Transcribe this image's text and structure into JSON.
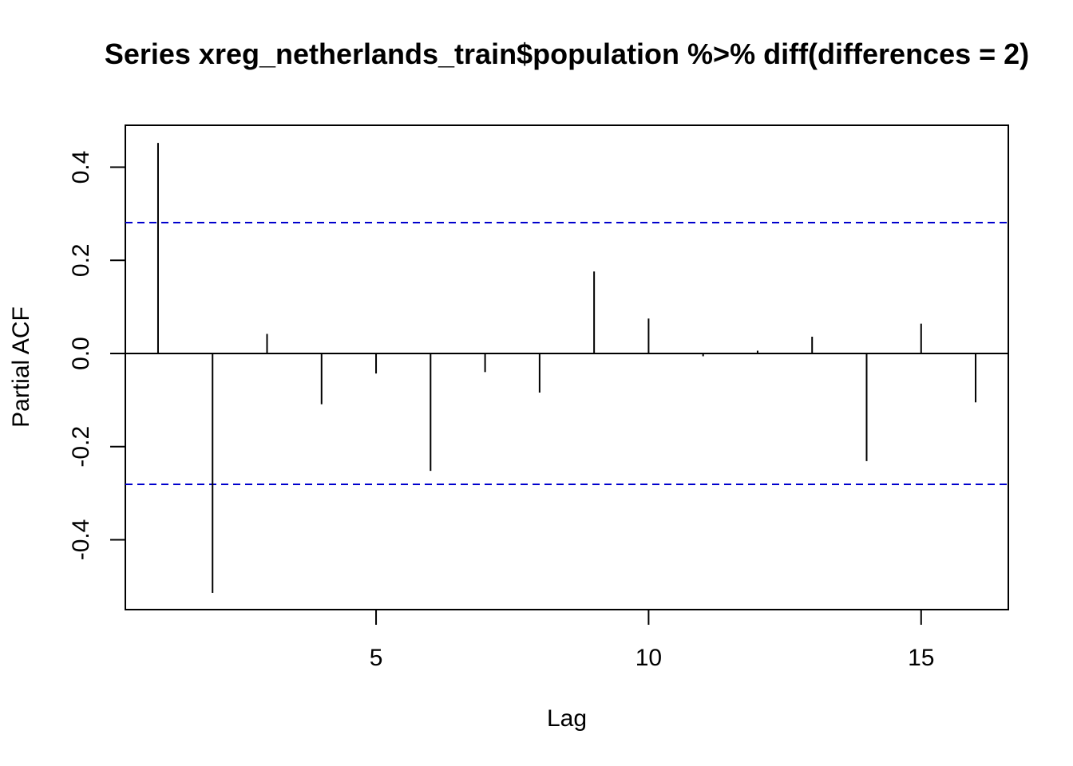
{
  "chart_data": {
    "type": "bar",
    "title": "Series  xreg_netherlands_train$population %>% diff(differences = 2)",
    "xlabel": "Lag",
    "ylabel": "Partial ACF",
    "xlim": [
      0.4,
      16.6
    ],
    "ylim": [
      -0.55,
      0.49
    ],
    "x_ticks": [
      5,
      10,
      15
    ],
    "x_tick_labels": [
      "5",
      "10",
      "15"
    ],
    "y_ticks": [
      -0.4,
      -0.2,
      0.0,
      0.2,
      0.4
    ],
    "y_tick_labels": [
      "-0.4",
      "-0.2",
      "0.0",
      "0.2",
      "0.4"
    ],
    "lags": [
      1,
      2,
      3,
      4,
      5,
      6,
      7,
      8,
      9,
      10,
      11,
      12,
      13,
      14,
      15,
      16
    ],
    "values": [
      0.452,
      -0.514,
      0.042,
      -0.109,
      -0.043,
      -0.252,
      -0.04,
      -0.084,
      0.176,
      0.075,
      -0.006,
      0.006,
      0.036,
      -0.231,
      0.064,
      -0.105
    ],
    "confidence_bound": 0.281,
    "bar_color": "#000000",
    "ci_color": "#0000CD",
    "grid": false,
    "legend": "none"
  }
}
